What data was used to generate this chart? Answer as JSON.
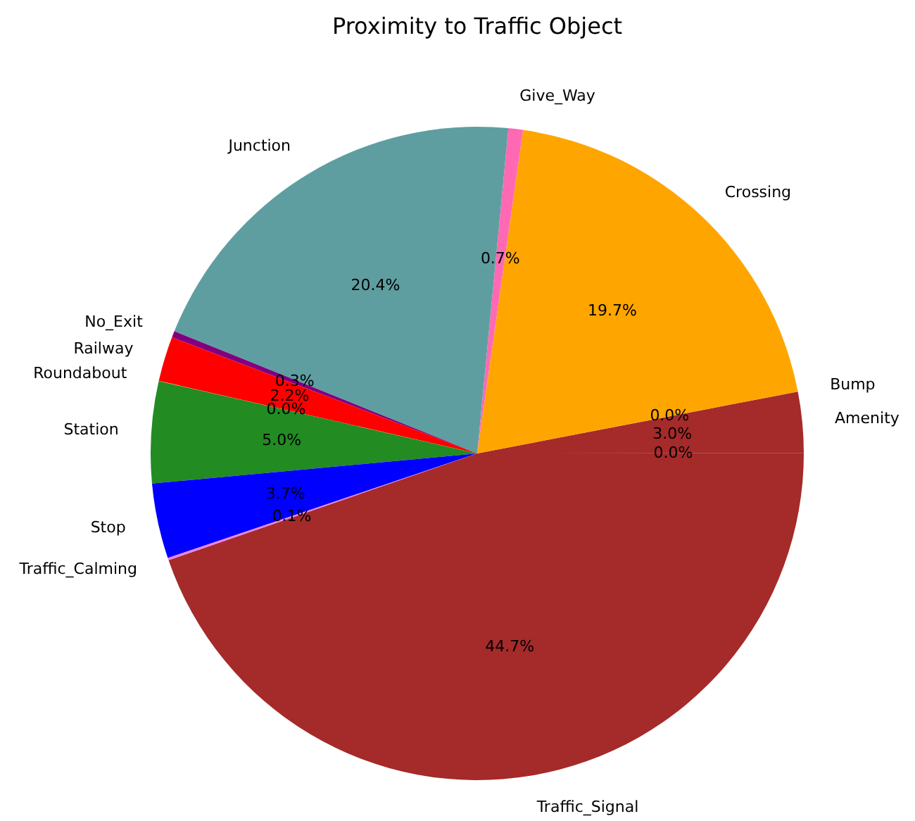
{
  "chart_data": {
    "type": "pie",
    "title": "Proximity to Traffic Object",
    "categories": [
      null,
      "Amenity",
      "Bump",
      "Crossing",
      "Give_Way",
      "Junction",
      "No_Exit",
      "Railway",
      "Roundabout",
      "Station",
      "Stop",
      "Traffic_Calming",
      "Traffic_Signal"
    ],
    "values": [
      0.01,
      3.02,
      0.01,
      19.72,
      0.72,
      20.42,
      0.32,
      2.22,
      0.01,
      5.02,
      3.72,
      0.12,
      44.7
    ],
    "colors": [
      "#8b4513",
      "#a52a2a",
      "#d2691e",
      "#ffa500",
      "#ff69b4",
      "#5f9ea0",
      "#800080",
      "#ff0000",
      "#ffd700",
      "#228b22",
      "#0000ff",
      "#ee82ee",
      "#a52a2a"
    ],
    "value_labels": [
      "0.0%",
      "3.0%",
      "0.0%",
      "19.7%",
      "0.7%",
      "20.4%",
      "0.3%",
      "2.2%",
      "0.0%",
      "5.0%",
      "3.7%",
      "0.1%",
      "44.7%"
    ]
  }
}
